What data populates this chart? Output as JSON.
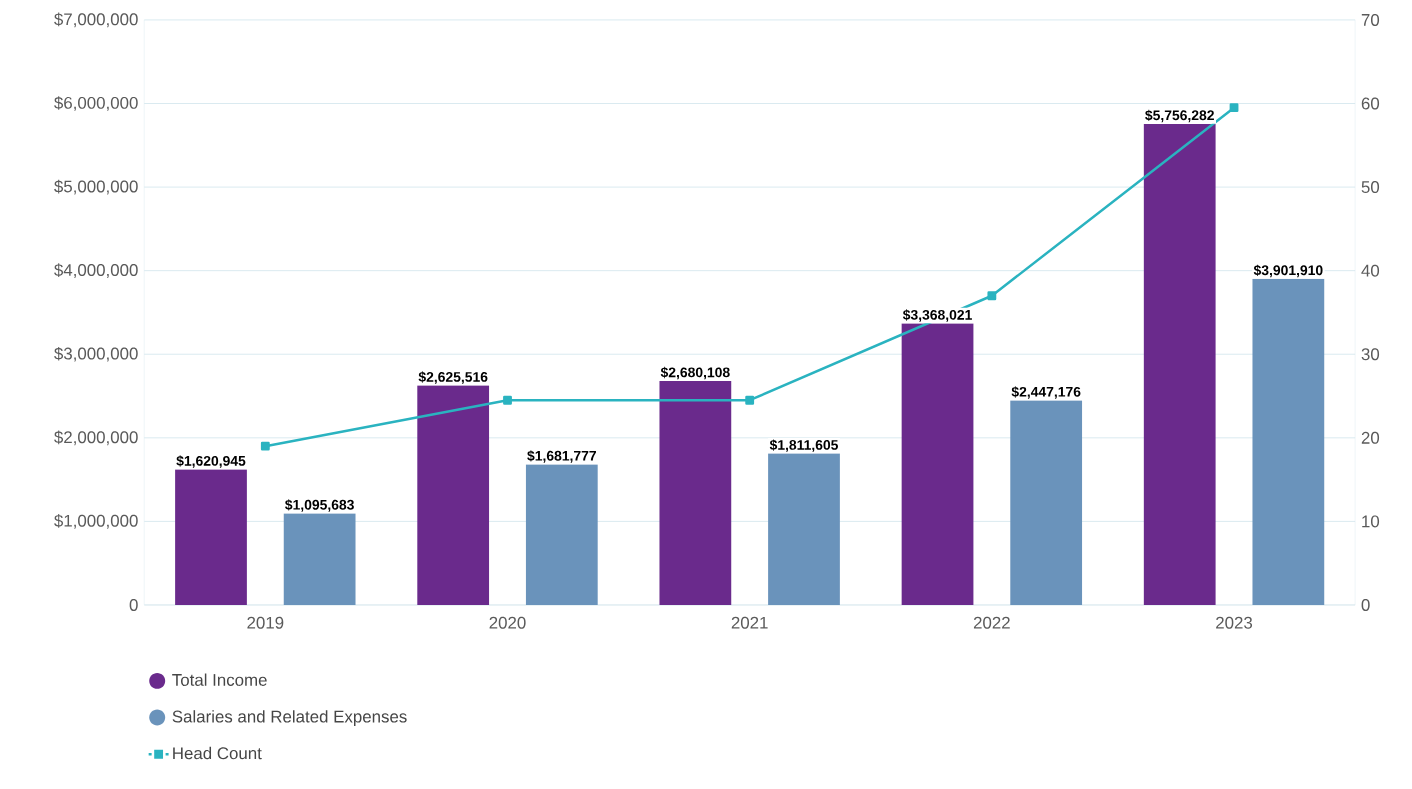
{
  "chart_data": {
    "type": "bar",
    "categories": [
      "2019",
      "2020",
      "2021",
      "2022",
      "2023"
    ],
    "series": [
      {
        "name": "Total Income",
        "color": "#6a2a8c",
        "values": [
          1620945,
          2625516,
          2680108,
          3368021,
          5756282
        ],
        "value_labels": [
          "$1,620,945",
          "$2,625,516",
          "$2,680,108",
          "$3,368,021",
          "$5,756,282"
        ]
      },
      {
        "name": "Salaries and Related Expenses",
        "color": "#6a93bb",
        "values": [
          1095683,
          1681777,
          1811605,
          2447176,
          3901910
        ],
        "value_labels": [
          "$1,095,683",
          "$1,681,777",
          "$1,811,605",
          "$2,447,176",
          "$3,901,910"
        ]
      },
      {
        "name": "Head Count",
        "type": "line",
        "axis": "y2",
        "color": "#2ab3c0",
        "values": [
          19,
          24.5,
          24.5,
          37,
          59.5
        ]
      }
    ],
    "ylim": [
      0,
      7000000
    ],
    "yticks": [
      {
        "value": 0,
        "label": "0"
      },
      {
        "value": 1000000,
        "label": "$1,000,000"
      },
      {
        "value": 2000000,
        "label": "$2,000,000"
      },
      {
        "value": 3000000,
        "label": "$3,000,000"
      },
      {
        "value": 4000000,
        "label": "$4,000,000"
      },
      {
        "value": 5000000,
        "label": "$5,000,000"
      },
      {
        "value": 6000000,
        "label": "$6,000,000"
      },
      {
        "value": 7000000,
        "label": "$7,000,000"
      }
    ],
    "y2lim": [
      0,
      70
    ],
    "y2ticks": [
      0,
      10,
      20,
      30,
      40,
      50,
      60,
      70
    ],
    "grid": "y",
    "legend": "bottom left",
    "marker": "square",
    "line_style": "solid"
  }
}
